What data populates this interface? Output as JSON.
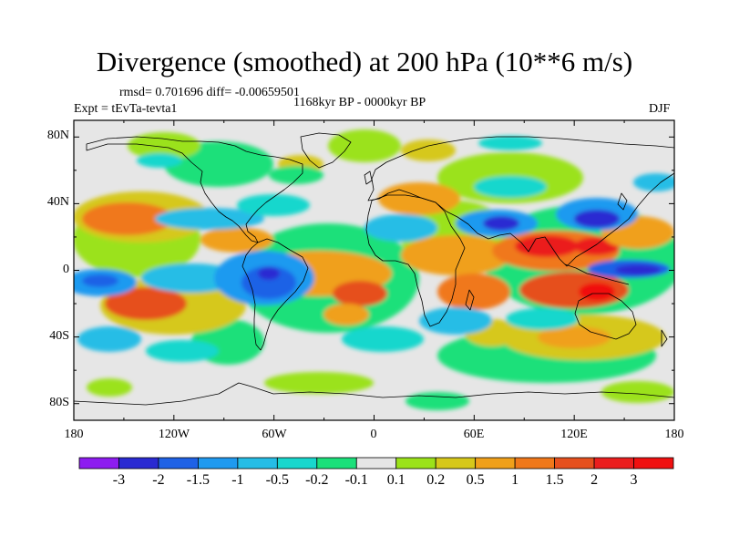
{
  "title": "Divergence (smoothed) at 200 hPa (10**6 m/s)",
  "stats_text": "rmsd= 0.701696 diff= -0.00659501",
  "period_text": "1168kyr BP - 0000kyr BP",
  "expt_text": "Expt = tEvTa-tevta1",
  "season_text": "DJF",
  "map": {
    "projection": "cylindrical-equidistant",
    "lon_range": [
      -180,
      180
    ],
    "lat_range": [
      -90,
      90
    ],
    "x_ticks": [
      "180",
      "120W",
      "60W",
      "0",
      "60E",
      "120E",
      "180"
    ],
    "y_ticks": [
      "80N",
      "40N",
      "0",
      "40S",
      "80S"
    ],
    "background_color": "#e6e6e6",
    "coastline_color": "#000000"
  },
  "colorbar": {
    "labels": [
      "-3",
      "-2",
      "-1.5",
      "-1",
      "-0.5",
      "-0.2",
      "-0.1",
      "0.1",
      "0.2",
      "0.5",
      "1",
      "1.5",
      "2",
      "3"
    ],
    "colors": [
      "#8d1cf0",
      "#2a2ad2",
      "#1f62e6",
      "#1f9af0",
      "#25bde6",
      "#18d7cd",
      "#1be07a",
      "#e6e6e6",
      "#9be21a",
      "#d6c81a",
      "#f0a01a",
      "#f0781a",
      "#e6501e",
      "#eb1e1e",
      "#f01010"
    ]
  }
}
